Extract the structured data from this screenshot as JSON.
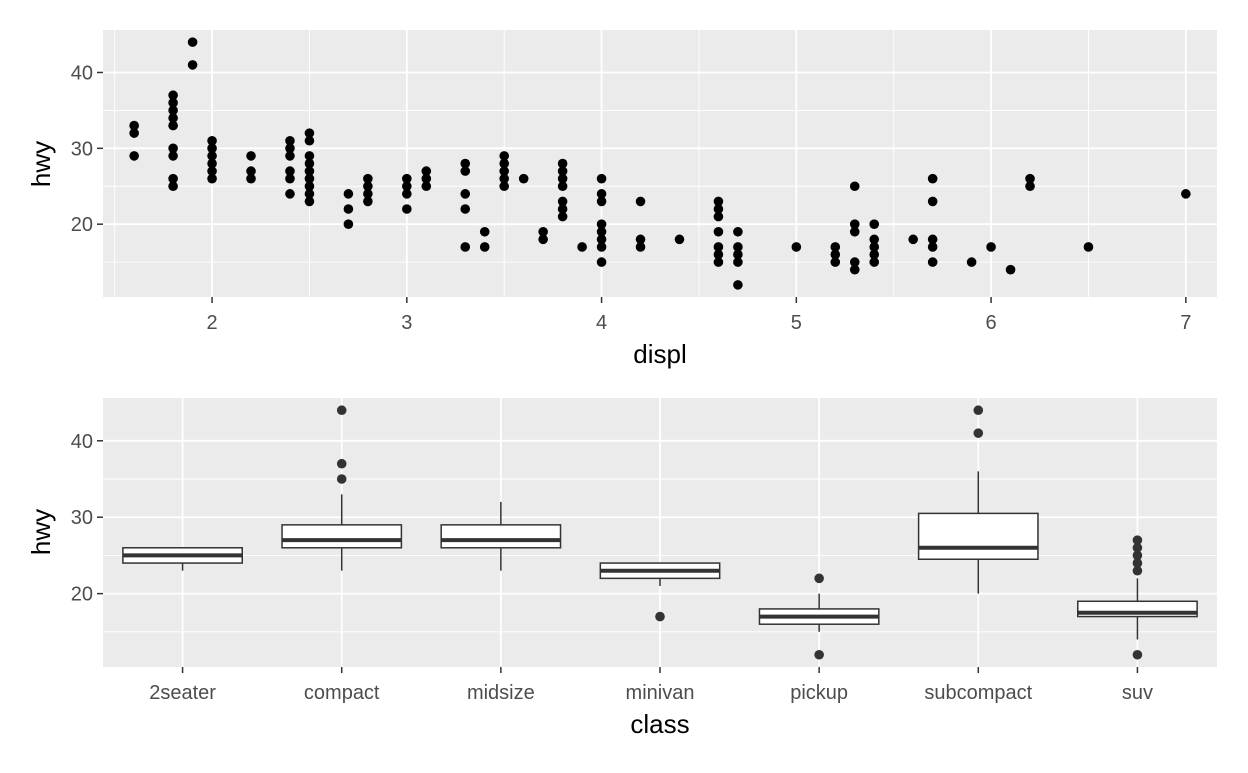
{
  "chart_data": [
    {
      "type": "scatter",
      "title": "",
      "xlabel": "displ",
      "ylabel": "hwy",
      "xlim": [
        1.44,
        7.16
      ],
      "ylim": [
        10.4,
        45.6
      ],
      "xticks": [
        "2",
        "3",
        "4",
        "5",
        "6",
        "7"
      ],
      "yticks": [
        "20",
        "30",
        "40"
      ],
      "grid": true,
      "background": "#EBEBEB",
      "point_color": "#000000",
      "points": [
        [
          1.6,
          33
        ],
        [
          1.6,
          32
        ],
        [
          1.6,
          29
        ],
        [
          1.8,
          37
        ],
        [
          1.8,
          36
        ],
        [
          1.8,
          35
        ],
        [
          1.8,
          34
        ],
        [
          1.8,
          33
        ],
        [
          1.8,
          30
        ],
        [
          1.8,
          29
        ],
        [
          1.8,
          26
        ],
        [
          1.8,
          25
        ],
        [
          1.9,
          44
        ],
        [
          1.9,
          41
        ],
        [
          2.0,
          31
        ],
        [
          2.0,
          30
        ],
        [
          2.0,
          29
        ],
        [
          2.0,
          28
        ],
        [
          2.0,
          27
        ],
        [
          2.0,
          26
        ],
        [
          2.2,
          29
        ],
        [
          2.2,
          27
        ],
        [
          2.2,
          26
        ],
        [
          2.4,
          31
        ],
        [
          2.4,
          30
        ],
        [
          2.4,
          29
        ],
        [
          2.4,
          27
        ],
        [
          2.4,
          26
        ],
        [
          2.4,
          24
        ],
        [
          2.5,
          32
        ],
        [
          2.5,
          31
        ],
        [
          2.5,
          29
        ],
        [
          2.5,
          28
        ],
        [
          2.5,
          27
        ],
        [
          2.5,
          26
        ],
        [
          2.5,
          25
        ],
        [
          2.5,
          24
        ],
        [
          2.5,
          23
        ],
        [
          2.7,
          24
        ],
        [
          2.7,
          22
        ],
        [
          2.7,
          20
        ],
        [
          2.8,
          26
        ],
        [
          2.8,
          25
        ],
        [
          2.8,
          24
        ],
        [
          2.8,
          23
        ],
        [
          3.0,
          26
        ],
        [
          3.0,
          25
        ],
        [
          3.0,
          24
        ],
        [
          3.0,
          22
        ],
        [
          3.1,
          27
        ],
        [
          3.1,
          26
        ],
        [
          3.1,
          25
        ],
        [
          3.3,
          28
        ],
        [
          3.3,
          27
        ],
        [
          3.3,
          24
        ],
        [
          3.3,
          22
        ],
        [
          3.3,
          17
        ],
        [
          3.4,
          19
        ],
        [
          3.4,
          17
        ],
        [
          3.5,
          29
        ],
        [
          3.5,
          28
        ],
        [
          3.5,
          27
        ],
        [
          3.5,
          26
        ],
        [
          3.5,
          25
        ],
        [
          3.6,
          26
        ],
        [
          3.7,
          19
        ],
        [
          3.7,
          18
        ],
        [
          3.8,
          28
        ],
        [
          3.8,
          27
        ],
        [
          3.8,
          26
        ],
        [
          3.8,
          25
        ],
        [
          3.8,
          23
        ],
        [
          3.8,
          22
        ],
        [
          3.8,
          21
        ],
        [
          3.9,
          17
        ],
        [
          4.0,
          26
        ],
        [
          4.0,
          24
        ],
        [
          4.0,
          23
        ],
        [
          4.0,
          20
        ],
        [
          4.0,
          19
        ],
        [
          4.0,
          18
        ],
        [
          4.0,
          17
        ],
        [
          4.0,
          15
        ],
        [
          4.2,
          23
        ],
        [
          4.2,
          18
        ],
        [
          4.2,
          17
        ],
        [
          4.4,
          18
        ],
        [
          4.6,
          23
        ],
        [
          4.6,
          22
        ],
        [
          4.6,
          21
        ],
        [
          4.6,
          19
        ],
        [
          4.6,
          17
        ],
        [
          4.6,
          16
        ],
        [
          4.6,
          15
        ],
        [
          4.7,
          19
        ],
        [
          4.7,
          17
        ],
        [
          4.7,
          16
        ],
        [
          4.7,
          15
        ],
        [
          4.7,
          12
        ],
        [
          5.0,
          17
        ],
        [
          5.2,
          17
        ],
        [
          5.2,
          16
        ],
        [
          5.2,
          15
        ],
        [
          5.3,
          25
        ],
        [
          5.3,
          20
        ],
        [
          5.3,
          19
        ],
        [
          5.3,
          15
        ],
        [
          5.3,
          14
        ],
        [
          5.4,
          20
        ],
        [
          5.4,
          18
        ],
        [
          5.4,
          17
        ],
        [
          5.4,
          16
        ],
        [
          5.4,
          15
        ],
        [
          5.6,
          18
        ],
        [
          5.7,
          26
        ],
        [
          5.7,
          23
        ],
        [
          5.7,
          18
        ],
        [
          5.7,
          17
        ],
        [
          5.7,
          15
        ],
        [
          5.9,
          15
        ],
        [
          6.0,
          17
        ],
        [
          6.1,
          14
        ],
        [
          6.2,
          26
        ],
        [
          6.2,
          25
        ],
        [
          6.5,
          17
        ],
        [
          7.0,
          24
        ]
      ]
    },
    {
      "type": "box",
      "title": "",
      "xlabel": "class",
      "ylabel": "hwy",
      "ylim": [
        10.4,
        45.6
      ],
      "yticks": [
        "20",
        "30",
        "40"
      ],
      "grid": true,
      "background": "#EBEBEB",
      "categories": [
        "2seater",
        "compact",
        "midsize",
        "minivan",
        "pickup",
        "subcompact",
        "suv"
      ],
      "boxes": [
        {
          "lower_whisker": 23,
          "q1": 24,
          "median": 25,
          "q3": 26,
          "upper_whisker": 26,
          "outliers": []
        },
        {
          "lower_whisker": 23,
          "q1": 26,
          "median": 27,
          "q3": 29,
          "upper_whisker": 33,
          "outliers": [
            44,
            37,
            35
          ]
        },
        {
          "lower_whisker": 23,
          "q1": 26,
          "median": 27,
          "q3": 29,
          "upper_whisker": 32,
          "outliers": []
        },
        {
          "lower_whisker": 21,
          "q1": 22,
          "median": 23,
          "q3": 24,
          "upper_whisker": 24,
          "outliers": [
            17
          ]
        },
        {
          "lower_whisker": 15,
          "q1": 16,
          "median": 17,
          "q3": 18,
          "upper_whisker": 20,
          "outliers": [
            22,
            12
          ]
        },
        {
          "lower_whisker": 20,
          "q1": 24.5,
          "median": 26,
          "q3": 30.5,
          "upper_whisker": 36,
          "outliers": [
            44,
            41
          ]
        },
        {
          "lower_whisker": 14,
          "q1": 17,
          "median": 17.5,
          "q3": 19,
          "upper_whisker": 22,
          "outliers": [
            27,
            26,
            25,
            24,
            23,
            12
          ]
        }
      ]
    }
  ]
}
